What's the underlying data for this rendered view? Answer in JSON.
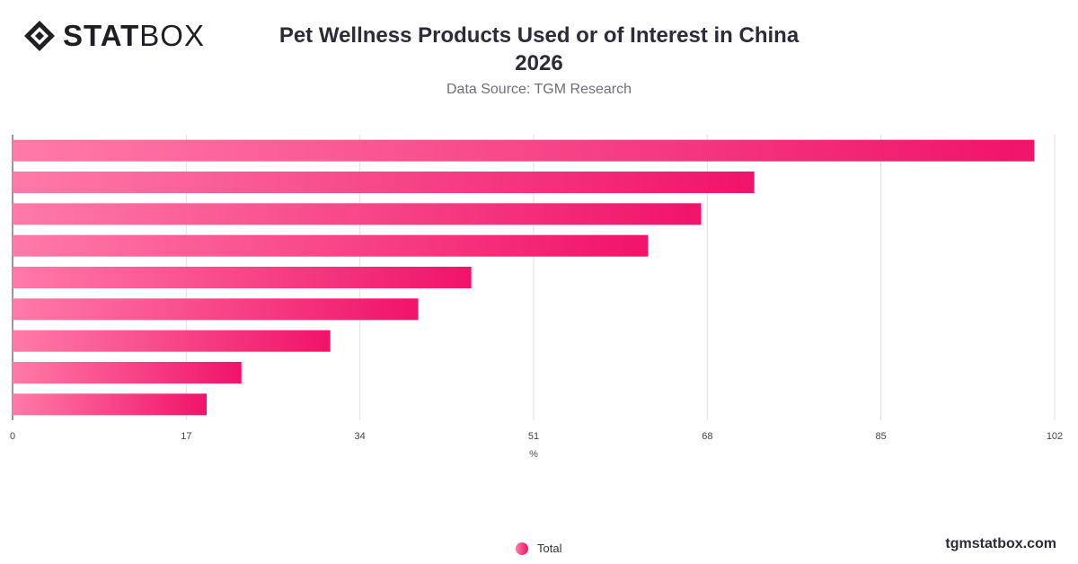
{
  "brand": {
    "logo_bold": "STAT",
    "logo_light": "BOX",
    "logo_icon": "statbox-diamond-icon",
    "site": "tgmstatbox.com"
  },
  "header": {
    "title_line1": "Pet Wellness Products Used or of Interest in China",
    "title_line2": "2026",
    "source": "Data Source: TGM Research"
  },
  "legend": {
    "label": "Total"
  },
  "colors": {
    "bar_start": "#ff7aa8",
    "bar_end": "#f0136a",
    "grid": "#e2e2e2",
    "axis": "#333333"
  },
  "chart_data": {
    "type": "bar",
    "orientation": "horizontal",
    "categories": [
      "",
      "",
      "",
      "",
      "",
      "",
      "",
      "",
      ""
    ],
    "series": [
      {
        "name": "Total",
        "values": [
          100.0,
          72.6,
          67.4,
          62.2,
          44.9,
          39.7,
          31.1,
          22.4,
          19.0
        ]
      }
    ],
    "xlabel": "%",
    "xlim": [
      0,
      102
    ],
    "xticks": [
      0,
      17,
      34,
      51,
      68,
      85,
      102
    ],
    "grid": true,
    "legend_position": "bottom"
  }
}
